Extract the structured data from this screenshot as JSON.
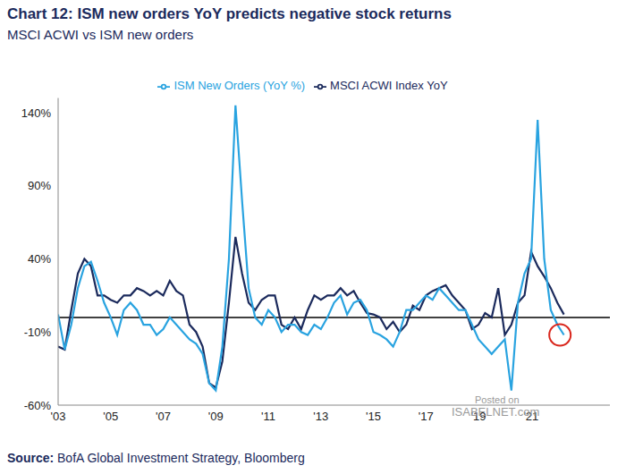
{
  "chart_data": {
    "type": "line",
    "title": "Chart 12: ISM new orders YoY predicts negative stock returns",
    "subtitle": "MSCI ACWI vs ISM new orders",
    "source": "Source: BofA Global Investment Strategy, Bloomberg",
    "watermark": [
      "Posted on",
      "ISABELNET.com"
    ],
    "x": [
      2003.0,
      2003.25,
      2003.5,
      2003.75,
      2004.0,
      2004.25,
      2004.5,
      2004.75,
      2005.0,
      2005.25,
      2005.5,
      2005.75,
      2006.0,
      2006.25,
      2006.5,
      2006.75,
      2007.0,
      2007.25,
      2007.5,
      2007.75,
      2008.0,
      2008.25,
      2008.5,
      2008.75,
      2009.0,
      2009.25,
      2009.5,
      2009.75,
      2010.0,
      2010.25,
      2010.5,
      2010.75,
      2011.0,
      2011.25,
      2011.5,
      2011.75,
      2012.0,
      2012.25,
      2012.5,
      2012.75,
      2013.0,
      2013.25,
      2013.5,
      2013.75,
      2014.0,
      2014.25,
      2014.5,
      2014.75,
      2015.0,
      2015.25,
      2015.5,
      2015.75,
      2016.0,
      2016.25,
      2016.5,
      2016.75,
      2017.0,
      2017.25,
      2017.5,
      2017.75,
      2018.0,
      2018.25,
      2018.5,
      2018.75,
      2019.0,
      2019.25,
      2019.5,
      2019.75,
      2020.0,
      2020.25,
      2020.5,
      2020.75,
      2021.0,
      2021.25,
      2021.5,
      2021.75,
      2022.0,
      2022.25
    ],
    "series": [
      {
        "name": "MSCI ACWI Index YoY",
        "color": "#1b2a5c",
        "values": [
          -20,
          -22,
          5,
          30,
          40,
          35,
          15,
          15,
          12,
          10,
          15,
          15,
          20,
          18,
          15,
          18,
          15,
          25,
          18,
          15,
          -5,
          -10,
          -20,
          -45,
          -48,
          -30,
          10,
          55,
          30,
          10,
          5,
          12,
          15,
          15,
          -5,
          -8,
          0,
          -8,
          5,
          15,
          12,
          15,
          15,
          20,
          15,
          18,
          10,
          3,
          2,
          0,
          -8,
          -3,
          -10,
          -5,
          8,
          5,
          15,
          18,
          20,
          22,
          15,
          10,
          5,
          -8,
          -5,
          3,
          0,
          20,
          -12,
          -5,
          10,
          15,
          45,
          35,
          28,
          20,
          10,
          2
        ]
      },
      {
        "name": "ISM New Orders (YoY %)",
        "color": "#29a3e0",
        "values": [
          2,
          -22,
          -5,
          20,
          35,
          38,
          25,
          10,
          0,
          -12,
          5,
          10,
          5,
          -5,
          -5,
          -12,
          -8,
          0,
          -5,
          -10,
          -15,
          -18,
          -25,
          -45,
          -50,
          -20,
          40,
          145,
          80,
          20,
          0,
          -5,
          5,
          0,
          -10,
          -5,
          -5,
          -10,
          -12,
          -5,
          -8,
          0,
          10,
          15,
          2,
          10,
          12,
          5,
          -10,
          -12,
          -15,
          -20,
          -10,
          5,
          5,
          10,
          15,
          12,
          20,
          15,
          10,
          5,
          5,
          -5,
          -15,
          -20,
          -25,
          -20,
          -15,
          -50,
          10,
          30,
          40,
          135,
          40,
          5,
          -5,
          -12
        ]
      }
    ],
    "xlim": [
      2003,
      2024
    ],
    "xticks": [
      {
        "value": 2003,
        "label": "'03"
      },
      {
        "value": 2005,
        "label": "'05"
      },
      {
        "value": 2007,
        "label": "'07"
      },
      {
        "value": 2009,
        "label": "'09"
      },
      {
        "value": 2011,
        "label": "'11"
      },
      {
        "value": 2013,
        "label": "'13"
      },
      {
        "value": 2015,
        "label": "'15"
      },
      {
        "value": 2017,
        "label": "'17"
      },
      {
        "value": 2019,
        "label": "'19"
      },
      {
        "value": 2021,
        "label": "'21"
      }
    ],
    "ylim": [
      -60,
      150
    ],
    "yticks": [
      {
        "value": -60,
        "label": "-60%"
      },
      {
        "value": -10,
        "label": "-10%"
      },
      {
        "value": 40,
        "label": "40%"
      },
      {
        "value": 90,
        "label": "90%"
      },
      {
        "value": 140,
        "label": "140%"
      }
    ],
    "reference_line": 0,
    "highlight": {
      "x": 2022.1,
      "y": -12,
      "color": "#d9261c"
    },
    "legend": "top",
    "grid": false
  }
}
